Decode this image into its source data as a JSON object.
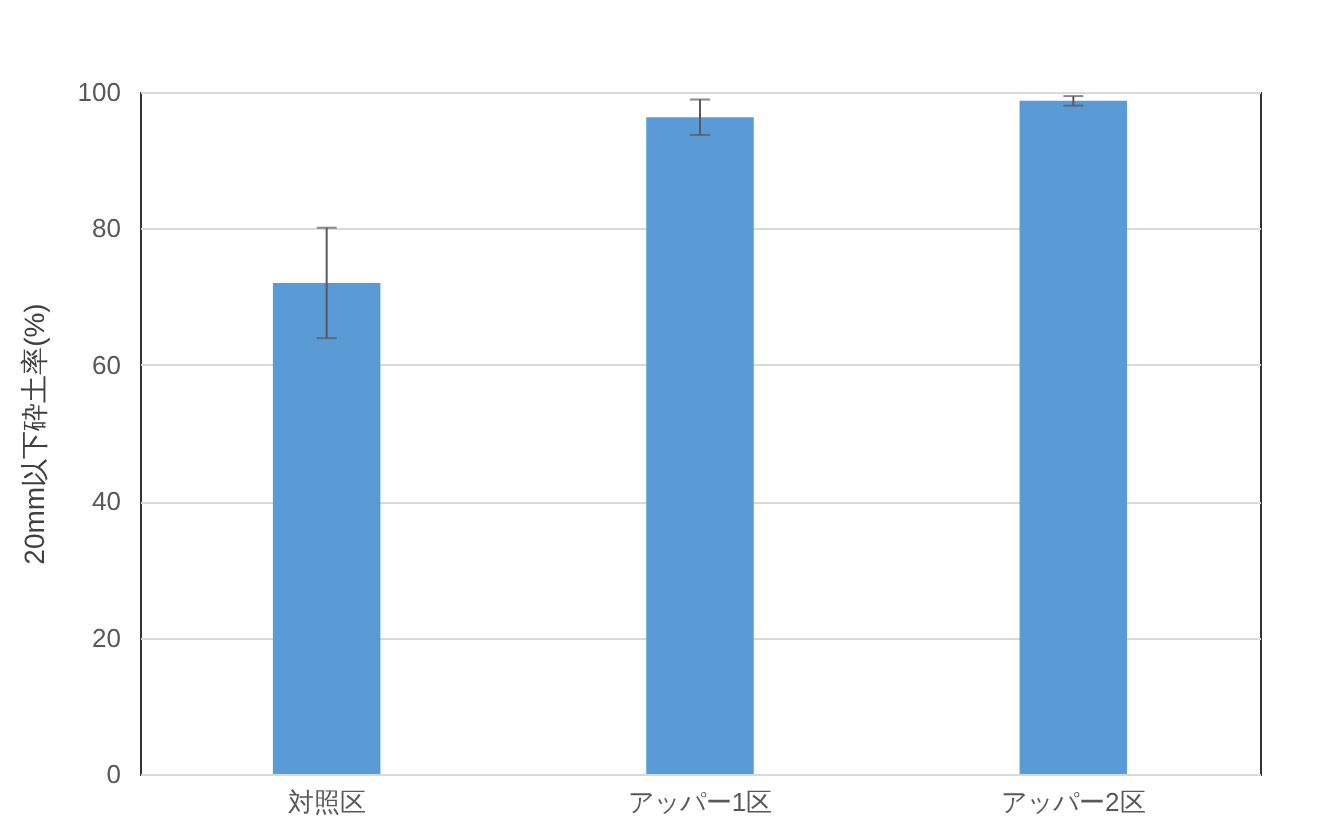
{
  "chart_data": {
    "type": "bar",
    "ylabel": "20mm以下砕土率(%)",
    "categories": [
      "対照区",
      "アッパー1区",
      "アッパー2区"
    ],
    "values": [
      72,
      96.3,
      98.7
    ],
    "errors": [
      8.1,
      2.6,
      0.7
    ],
    "color": "#5b9bd5",
    "ylim": [
      0,
      100
    ],
    "yticks": [
      0,
      20,
      40,
      60,
      80,
      100
    ],
    "grid": "y"
  }
}
